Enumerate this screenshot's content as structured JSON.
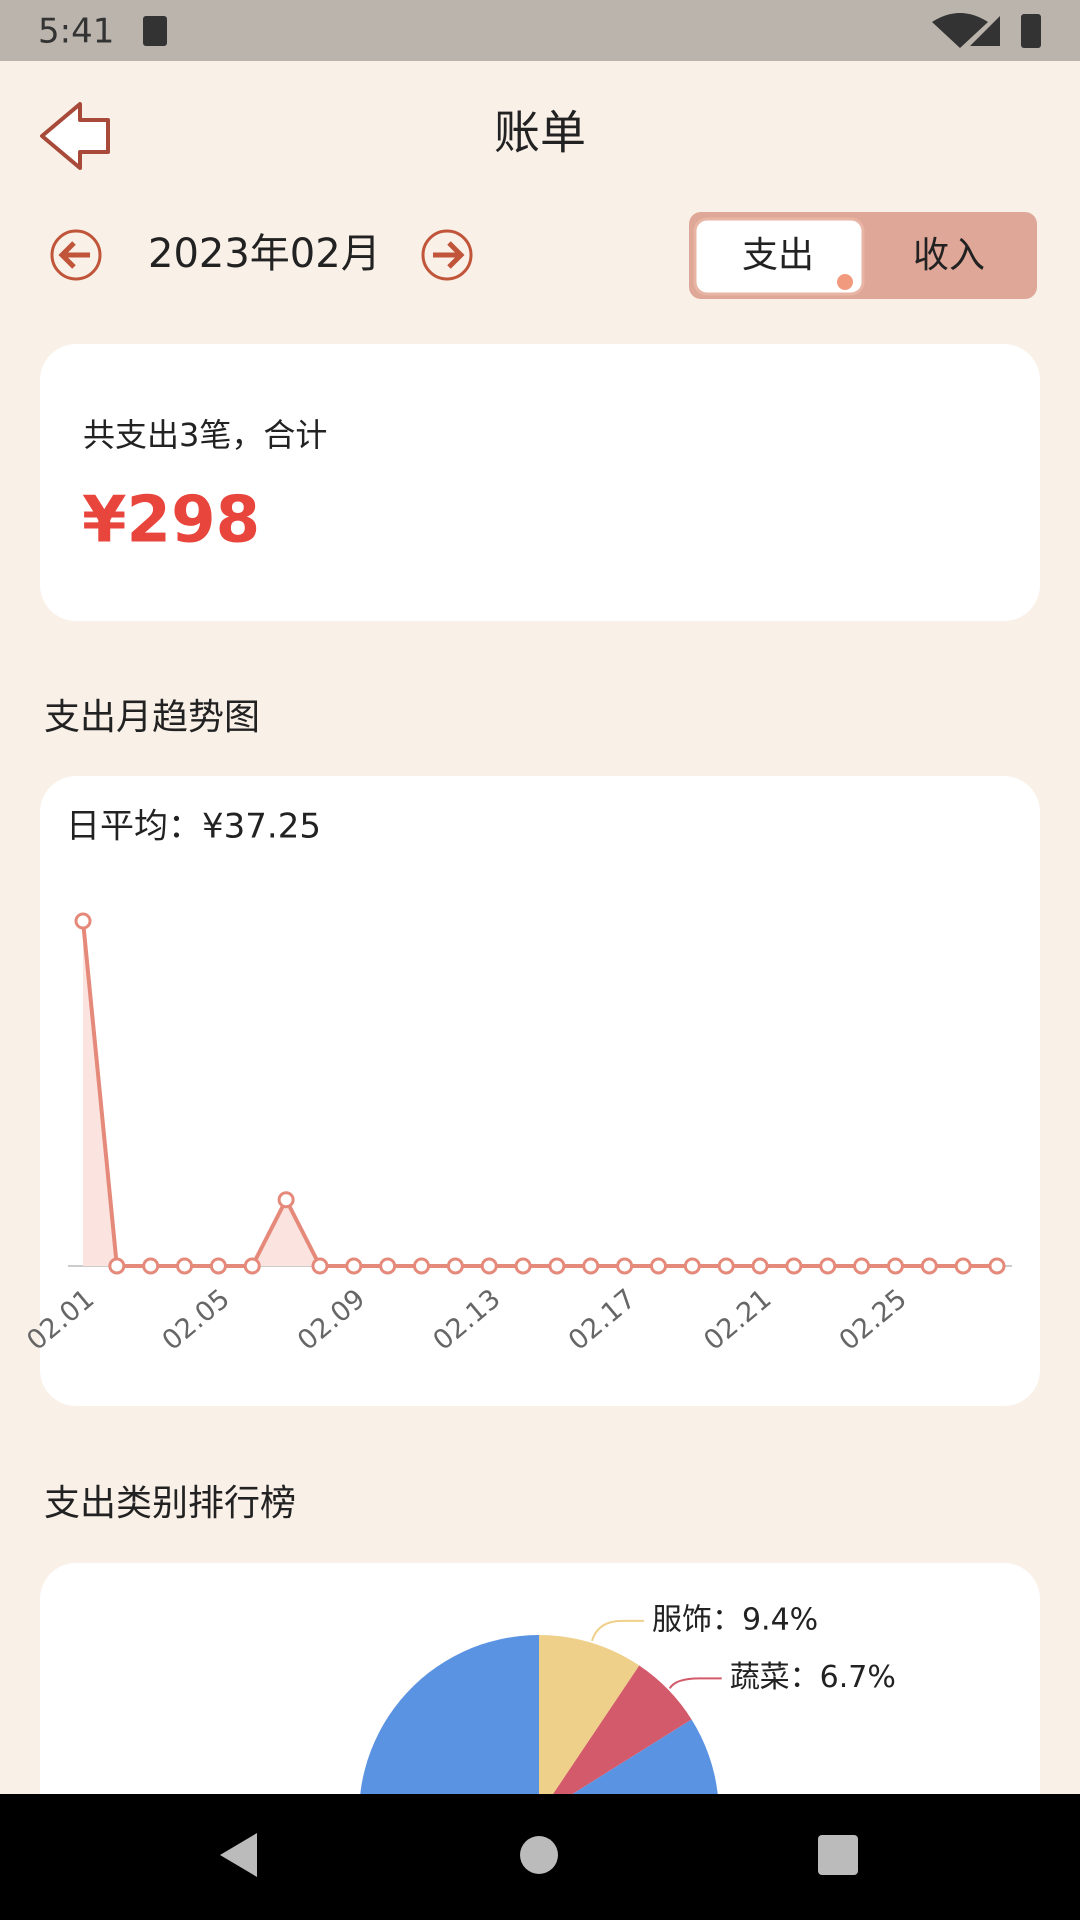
{
  "status_bar": {
    "time": "5:41"
  },
  "header": {
    "title": "账单"
  },
  "month_selector": {
    "month": "2023年02月"
  },
  "tabs": [
    "支出",
    "收入"
  ],
  "summary": {
    "text": "共支出3笔，合计",
    "amount": "¥298"
  },
  "chart_data": [
    {
      "type": "line",
      "title": "支出月趋势图",
      "subtitle": "日平均：¥37.25",
      "color": "#e58a7a",
      "fill": "#fbe3df",
      "categories": [
        "02.01",
        null,
        null,
        null,
        "02.05",
        null,
        null,
        null,
        "02.09",
        null,
        null,
        null,
        "02.13",
        null,
        null,
        null,
        "02.17",
        null,
        null,
        null,
        "02.21",
        null,
        null,
        null,
        "02.25",
        null,
        null,
        null
      ],
      "values": [
        250,
        0,
        0,
        0,
        0,
        0,
        48,
        0,
        0,
        0,
        0,
        0,
        0,
        0,
        0,
        0,
        0,
        0,
        0,
        0,
        0,
        0,
        0,
        0,
        0,
        0,
        0,
        0
      ]
    },
    {
      "type": "pie",
      "title": "支出类别排行榜",
      "values": [
        9.4,
        6.7,
        83.9
      ],
      "value_labels": [
        "服饰：9.4%",
        "蔬菜：6.7%",
        null
      ],
      "colors": [
        "#efd08a",
        "#d25a6a",
        "#5b93e3"
      ]
    }
  ]
}
